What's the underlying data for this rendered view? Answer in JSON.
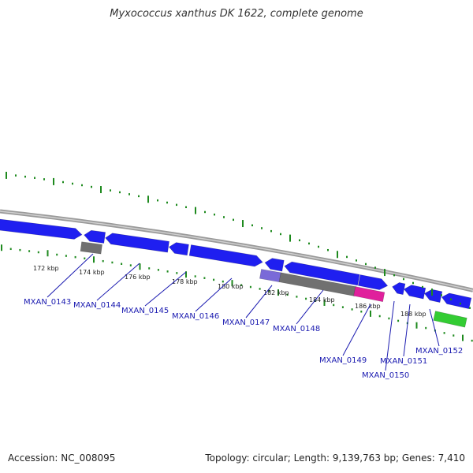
{
  "title": "Myxococcus xanthus DK 1622, complete genome",
  "footer": {
    "accession": "Accession: NC_008095",
    "summary": "Topology: circular; Length: 9,139,763 bp; Genes: 7,410"
  },
  "colors": {
    "forward_gene": "#1f1ff0",
    "backbone": "#888888",
    "tick": "#1e8a1e",
    "label": "#1a1ab0",
    "pseudo_gene": "#707070",
    "highlight_pink": "#e0209c",
    "highlight_purple": "#7a6ad8",
    "rna": "#33cc33"
  },
  "scale_labels": [
    "172 kbp",
    "174 kbp",
    "176 kbp",
    "178 kbp",
    "180 kbp",
    "182 kbp",
    "184 kbp",
    "186 kbp",
    "188 kbp"
  ],
  "gene_labels": [
    "MXAN_0143",
    "MXAN_0144",
    "MXAN_0145",
    "MXAN_0146",
    "MXAN_0147",
    "MXAN_0148",
    "MXAN_0149",
    "MXAN_0150",
    "MXAN_0151",
    "MXAN_0152"
  ]
}
